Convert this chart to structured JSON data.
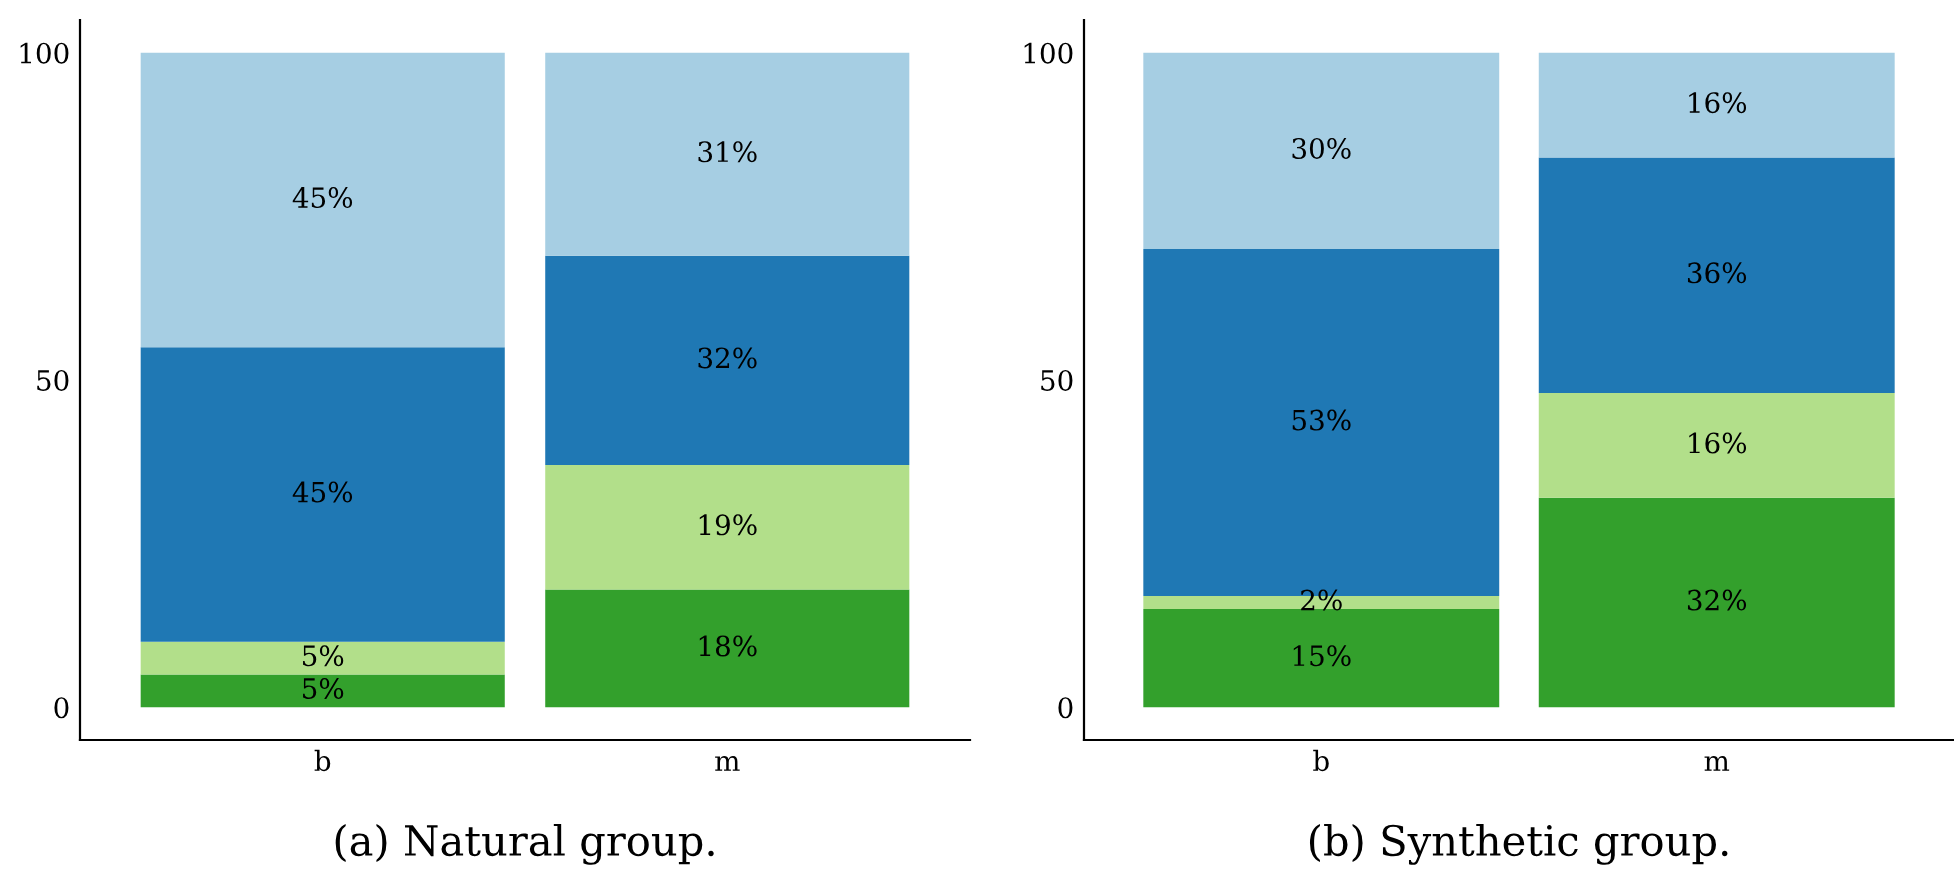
{
  "chart_data": [
    {
      "type": "bar",
      "stacked": true,
      "title": "(a) Natural group.",
      "categories": [
        "b",
        "m"
      ],
      "ylim": [
        -5,
        105
      ],
      "yticks": [
        0,
        50,
        100
      ],
      "grid": false,
      "series": [
        {
          "color": "#33a02c",
          "values": [
            5,
            18
          ],
          "value_labels": [
            "5%",
            "18%"
          ]
        },
        {
          "color": "#b2df8a",
          "values": [
            5,
            19
          ],
          "value_labels": [
            "5%",
            "19%"
          ]
        },
        {
          "color": "#1f78b4",
          "values": [
            45,
            32
          ],
          "value_labels": [
            "45%",
            "32%"
          ]
        },
        {
          "color": "#a6cee3",
          "values": [
            45,
            31
          ],
          "value_labels": [
            "45%",
            "31%"
          ]
        }
      ]
    },
    {
      "type": "bar",
      "stacked": true,
      "title": "(b) Synthetic group.",
      "categories": [
        "b",
        "m"
      ],
      "ylim": [
        -5,
        105
      ],
      "yticks": [
        0,
        50,
        100
      ],
      "grid": false,
      "series": [
        {
          "color": "#33a02c",
          "values": [
            15,
            32
          ],
          "value_labels": [
            "15%",
            "32%"
          ]
        },
        {
          "color": "#b2df8a",
          "values": [
            2,
            16
          ],
          "value_labels": [
            "2%",
            "16%"
          ]
        },
        {
          "color": "#1f78b4",
          "values": [
            53,
            36
          ],
          "value_labels": [
            "53%",
            "36%"
          ]
        },
        {
          "color": "#a6cee3",
          "values": [
            30,
            16
          ],
          "value_labels": [
            "30%",
            "16%"
          ]
        }
      ]
    }
  ]
}
